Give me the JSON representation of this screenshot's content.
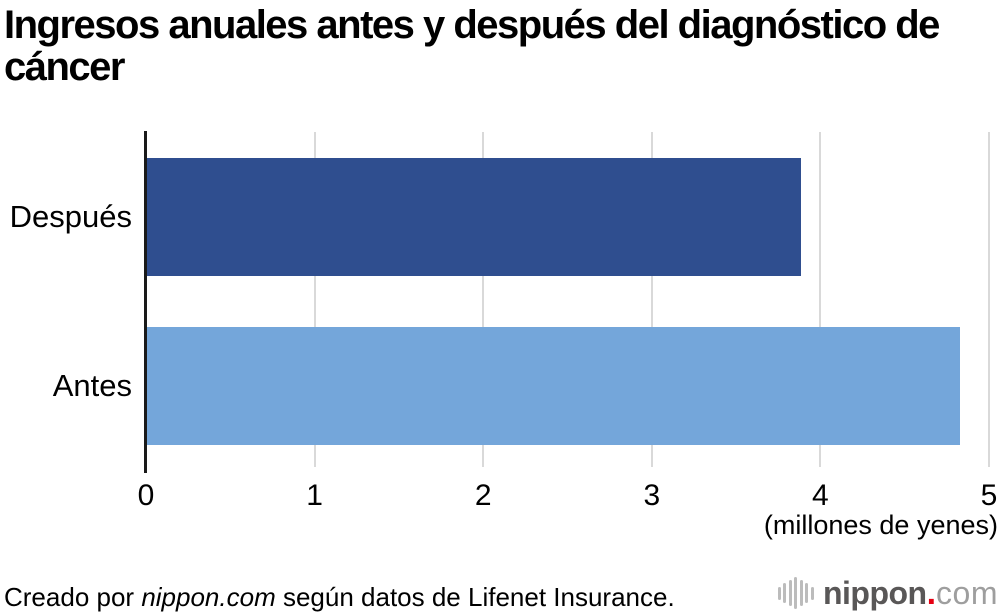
{
  "title": "Ingresos anuales antes y después del diagnóstico de cáncer",
  "chart_data": {
    "type": "bar",
    "orientation": "horizontal",
    "categories": [
      "Después",
      "Antes"
    ],
    "values": [
      3.88,
      4.82
    ],
    "bar_colors": [
      "#2f4e8f",
      "#74a6da"
    ],
    "title": "Ingresos anuales antes y después del diagnóstico de cáncer",
    "xlabel": "(millones de yenes)",
    "ylabel": "",
    "x_ticks": [
      0,
      1,
      2,
      3,
      4,
      5
    ],
    "xlim": [
      0,
      5
    ],
    "grid": true,
    "gridline_color": "#d9d9d9",
    "axis_color": "#1a1a1a",
    "legend": "none"
  },
  "footer": {
    "credit_prefix": "Creado por ",
    "credit_source": "nippon.com",
    "credit_suffix": " según datos de Lifenet Insurance.",
    "logo": {
      "icon": "soundwave-bars-icon",
      "name": "nippon",
      "dot": ".",
      "tld": "com",
      "name_color": "#595757",
      "dot_color": "#e60012",
      "tld_color": "#9e9e9e"
    }
  }
}
